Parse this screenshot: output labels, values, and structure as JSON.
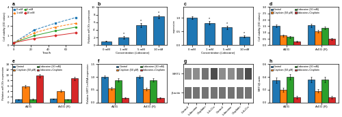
{
  "chart_data": [
    {
      "type": "line",
      "title": "a",
      "x_label": "Time/h",
      "y_label": "Cell viability (OD values)",
      "x": [
        0,
        24,
        48,
        72
      ],
      "xlim": [
        -2,
        78
      ],
      "xticks": [
        0,
        20,
        40,
        60
      ],
      "ylim": [
        0,
        4
      ],
      "yticks": [
        0,
        1,
        2,
        3,
        4
      ],
      "legend": "upper left",
      "series": [
        {
          "name": "0 mM",
          "values": [
            0.25,
            1.6,
            2.3,
            2.9
          ],
          "line_style": "dashed",
          "marker": "square"
        },
        {
          "name": "1 mM",
          "values": [
            0.25,
            1.3,
            1.9,
            2.3
          ],
          "line_style": "dashed",
          "marker": "triangle"
        },
        {
          "name": "5 mM",
          "values": [
            0.25,
            1.0,
            1.5,
            1.9
          ],
          "line_style": "solid",
          "marker": "circle"
        },
        {
          "name": "10 mM",
          "values": [
            0.25,
            0.7,
            1.0,
            1.3
          ],
          "line_style": "solid",
          "marker": "diamond"
        }
      ]
    },
    {
      "type": "bar",
      "title": "b",
      "x_label": "Concentration (Lidocaine)",
      "y_label": "Relative miR-30c expression",
      "categories": [
        "0 mM",
        "1 mM",
        "5 mM",
        "10 mM"
      ],
      "values": [
        1.0,
        2.0,
        5.2,
        7.5
      ],
      "errors": [
        0.12,
        0.35,
        0.55,
        0.45
      ],
      "ylim": [
        0,
        10
      ],
      "yticks": [
        0,
        2,
        4,
        6,
        8,
        10
      ],
      "annotations": [
        {
          "category": "1 mM",
          "text": "*"
        },
        {
          "category": "5 mM",
          "text": "*"
        },
        {
          "category": "10 mM",
          "text": "*"
        }
      ]
    },
    {
      "type": "bar",
      "title": "c",
      "x_label": "Concentration (Lidocaine)",
      "y_label": "expression",
      "categories": [
        "0 mM",
        "1 mM",
        "5 mM",
        "10 mM"
      ],
      "values": [
        1.0,
        0.82,
        0.65,
        0.32
      ],
      "errors": [
        0.05,
        0.06,
        0.06,
        0.04
      ],
      "ylim": [
        0.0,
        1.4
      ],
      "yticks": [
        0.0,
        0.5,
        1.0
      ],
      "annotations": [
        {
          "category": "1 mM",
          "text": "*"
        },
        {
          "category": "5 mM",
          "text": "*"
        },
        {
          "category": "10 mM",
          "text": "*"
        }
      ]
    },
    {
      "type": "bar",
      "title": "d",
      "y_label": "Cell viability (OD values)",
      "categories": [
        "A431",
        "A431 (R)"
      ],
      "ylim": [
        0,
        3.0
      ],
      "yticks": [
        0.0,
        0.5,
        1.0,
        1.5,
        2.0,
        2.5,
        3.0
      ],
      "legend": "upper left",
      "series": [
        {
          "name": "Control",
          "values": [
            1.5,
            1.55
          ],
          "errors": [
            0.1,
            0.12
          ]
        },
        {
          "name": "Cisplatin (50 μM)",
          "values": [
            0.75,
            1.1
          ],
          "errors": [
            0.07,
            0.09
          ]
        },
        {
          "name": "Lidocaine (10 mM)",
          "values": [
            0.65,
            1.35
          ],
          "errors": [
            0.07,
            0.09
          ]
        },
        {
          "name": "Lidocaine+Cisplatin",
          "values": [
            0.28,
            0.48
          ],
          "errors": [
            0.04,
            0.07
          ]
        }
      ]
    },
    {
      "type": "bar",
      "title": "e",
      "y_label": "Relative miR-30c expression",
      "categories": [
        "A431",
        "A431 (R)"
      ],
      "ylim": [
        0,
        14
      ],
      "yticks": [
        0,
        2,
        4,
        6,
        8,
        10,
        12,
        14
      ],
      "legend": "upper left",
      "series": [
        {
          "name": "Control",
          "values": [
            1.0,
            1.3
          ],
          "errors": [
            0.12,
            0.15
          ]
        },
        {
          "name": "Cisplatin (50 μM)",
          "values": [
            5.8,
            4.2
          ],
          "errors": [
            0.45,
            0.42
          ]
        },
        {
          "name": "Lidocaine (10 mM)",
          "values": [
            1.1,
            1.0
          ],
          "errors": [
            0.15,
            0.15
          ]
        },
        {
          "name": "Lidocaine+Cisplatin",
          "values": [
            9.8,
            8.8
          ],
          "errors": [
            0.65,
            0.65
          ]
        }
      ]
    },
    {
      "type": "bar",
      "title": "f",
      "y_label": "Relative SIRT1 mRNA expression",
      "categories": [
        "A431",
        "A431 (R)"
      ],
      "ylim": [
        0,
        1.5
      ],
      "yticks": [
        0.0,
        0.5,
        1.0,
        1.5
      ],
      "legend": "upper right",
      "series": [
        {
          "name": "Control",
          "values": [
            1.0,
            1.0
          ],
          "errors": [
            0.05,
            0.05
          ]
        },
        {
          "name": "Cisplatin (50 μM)",
          "values": [
            0.55,
            0.52
          ],
          "errors": [
            0.05,
            0.05
          ]
        },
        {
          "name": "Lidocaine (10 mM)",
          "values": [
            0.88,
            0.88
          ],
          "errors": [
            0.06,
            0.06
          ]
        },
        {
          "name": "Lidocaine+Cisplatin",
          "values": [
            0.18,
            0.18
          ],
          "errors": [
            0.03,
            0.03
          ]
        }
      ]
    },
    {
      "type": "heatmap",
      "title": "g",
      "categories": [
        "Control",
        "Lidocaine",
        "Cisplatin",
        "Lid+Cis",
        "Control",
        "Lidocaine",
        "Cisplatin",
        "Lid+Cis"
      ],
      "rows": [
        "SIRT1",
        "β-actin"
      ],
      "cells": [
        [
          0.55,
          0.55,
          0.45,
          0.3,
          0.55,
          0.55,
          0.45,
          0.3
        ],
        [
          0.45,
          0.45,
          0.45,
          0.45,
          0.45,
          0.45,
          0.45,
          0.45
        ]
      ]
    },
    {
      "type": "bar",
      "title": "h",
      "y_label": "SIRT1/β-actin",
      "categories": [
        "A431",
        "A431 (R)"
      ],
      "ylim": [
        0,
        0.6
      ],
      "yticks": [
        0.0,
        0.2,
        0.4,
        0.6
      ],
      "legend": "upper left",
      "series": [
        {
          "name": "Control",
          "values": [
            0.35,
            0.36
          ],
          "errors": [
            0.04,
            0.04
          ]
        },
        {
          "name": "Cisplatin (50 μM)",
          "values": [
            0.2,
            0.18
          ],
          "errors": [
            0.03,
            0.03
          ]
        },
        {
          "name": "Lidocaine (10 mM)",
          "values": [
            0.4,
            0.36
          ],
          "errors": [
            0.04,
            0.04
          ]
        },
        {
          "name": "Lidocaine+Cisplatin",
          "values": [
            0.08,
            0.08
          ],
          "errors": [
            0.02,
            0.02
          ]
        }
      ]
    }
  ]
}
